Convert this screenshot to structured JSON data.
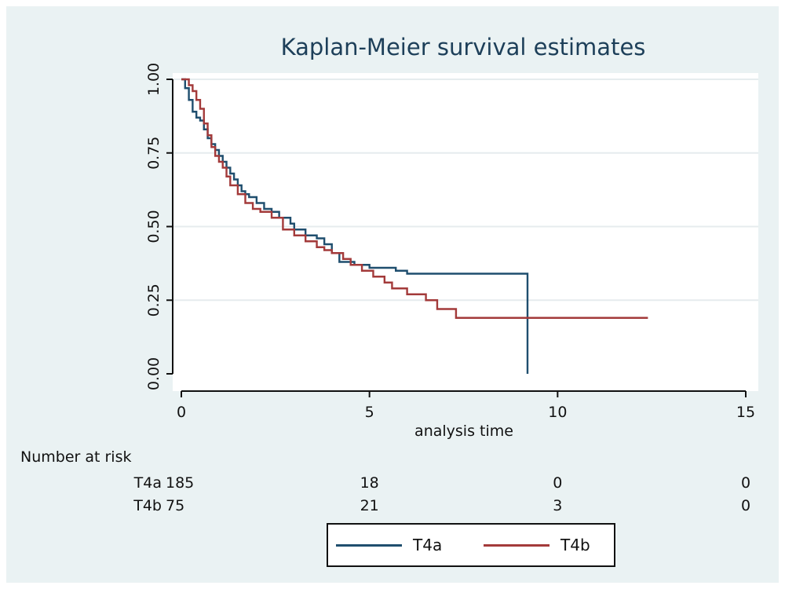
{
  "chart_data": {
    "type": "line",
    "subtype": "step",
    "title": "Kaplan-Meier survival estimates",
    "xlabel": "analysis time",
    "ylabel": "",
    "xlim": [
      0,
      15
    ],
    "ylim": [
      0,
      1
    ],
    "xticks": [
      0,
      5,
      10,
      15
    ],
    "yticks": [
      0,
      0.25,
      0.5,
      0.75,
      1
    ],
    "ytick_labels": [
      "0.00",
      "0.25",
      "0.50",
      "0.75",
      "1.00"
    ],
    "xtick_labels": [
      "0",
      "5",
      "10",
      "15"
    ],
    "grid": true,
    "legend_position": "bottom",
    "colors": {
      "T4a": "#1f4e6e",
      "T4b": "#a33a3a"
    },
    "series": [
      {
        "name": "T4a",
        "x": [
          0,
          0.1,
          0.2,
          0.3,
          0.4,
          0.5,
          0.6,
          0.7,
          0.8,
          0.9,
          1.0,
          1.1,
          1.2,
          1.3,
          1.4,
          1.5,
          1.6,
          1.7,
          1.8,
          2.0,
          2.2,
          2.4,
          2.6,
          2.9,
          3.0,
          3.3,
          3.6,
          3.8,
          4.0,
          4.2,
          4.6,
          5.0,
          5.7,
          6.0,
          9.2
        ],
        "y": [
          1.0,
          0.97,
          0.93,
          0.89,
          0.87,
          0.86,
          0.83,
          0.8,
          0.78,
          0.76,
          0.74,
          0.72,
          0.7,
          0.68,
          0.66,
          0.64,
          0.62,
          0.61,
          0.6,
          0.58,
          0.56,
          0.55,
          0.53,
          0.51,
          0.49,
          0.47,
          0.46,
          0.44,
          0.41,
          0.38,
          0.37,
          0.36,
          0.35,
          0.34,
          0.0
        ],
        "end_x": 9.2
      },
      {
        "name": "T4b",
        "x": [
          0,
          0.2,
          0.3,
          0.4,
          0.5,
          0.6,
          0.7,
          0.8,
          0.9,
          1.0,
          1.1,
          1.2,
          1.3,
          1.5,
          1.7,
          1.9,
          2.1,
          2.4,
          2.7,
          3.0,
          3.3,
          3.6,
          3.8,
          4.0,
          4.3,
          4.5,
          4.8,
          5.1,
          5.4,
          5.6,
          6.0,
          6.5,
          6.8,
          7.3
        ],
        "y": [
          1.0,
          0.98,
          0.96,
          0.93,
          0.9,
          0.85,
          0.81,
          0.77,
          0.74,
          0.72,
          0.7,
          0.67,
          0.64,
          0.61,
          0.58,
          0.56,
          0.55,
          0.53,
          0.49,
          0.47,
          0.45,
          0.43,
          0.42,
          0.41,
          0.39,
          0.37,
          0.35,
          0.33,
          0.31,
          0.29,
          0.27,
          0.25,
          0.22,
          0.19
        ],
        "end_x": 12.4
      }
    ],
    "risk_table": {
      "header": "Number at risk",
      "rows": [
        {
          "label": "T4a",
          "values": [
            "185",
            "18",
            "0",
            "0"
          ]
        },
        {
          "label": "T4b",
          "values": [
            "75",
            "21",
            "3",
            "0"
          ]
        }
      ]
    }
  }
}
